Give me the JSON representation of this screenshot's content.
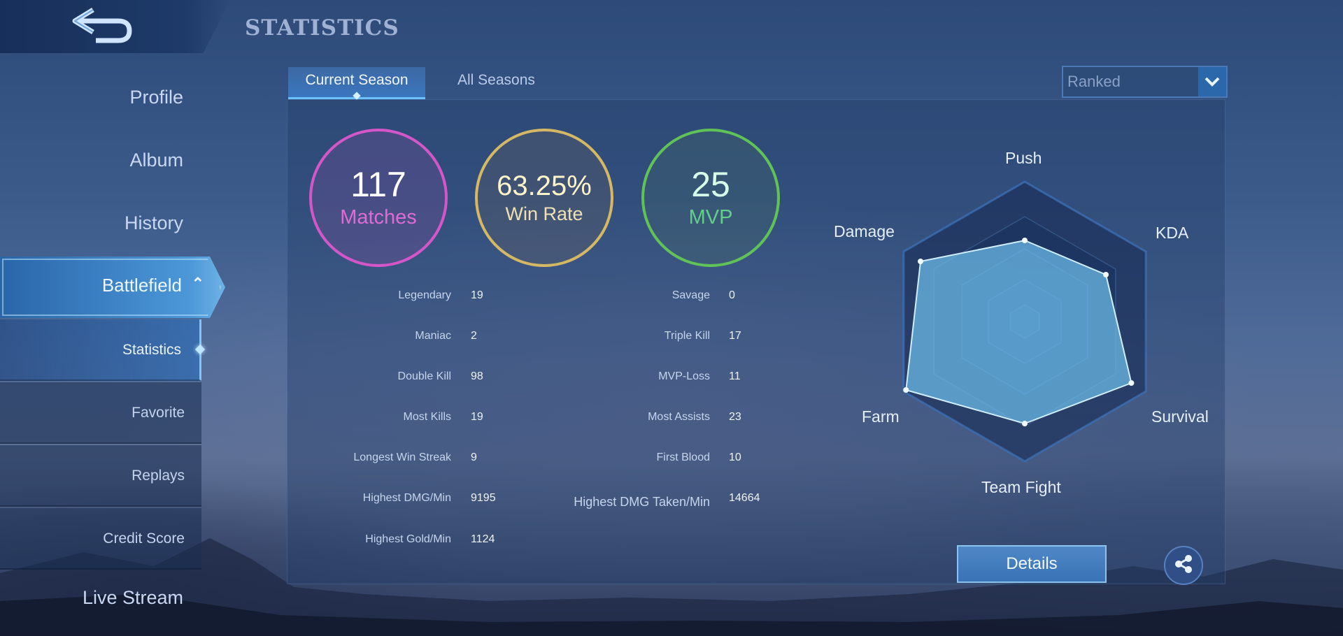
{
  "header": {
    "title": "STATISTICS",
    "back_icon": "back-arrow-icon"
  },
  "nav": {
    "profile": "Profile",
    "album": "Album",
    "history": "History",
    "battlefield": "Battlefield",
    "battlefield_chevron": "⌃",
    "sub_items": {
      "statistics": "Statistics",
      "favorite": "Favorite",
      "replays": "Replays",
      "credit_score": "Credit Score"
    },
    "live_stream": "Live Stream"
  },
  "tabs": {
    "current": "Current Season",
    "all": "All Seasons"
  },
  "mode_select": {
    "value": "Ranked"
  },
  "summary": {
    "matches": {
      "value": "117",
      "label": "Matches"
    },
    "win_rate": {
      "value": "63.25%",
      "label": "Win Rate"
    },
    "mvp": {
      "value": "25",
      "label": "MVP"
    }
  },
  "stats_left": [
    {
      "label": "Legendary",
      "value": "19"
    },
    {
      "label": "Maniac",
      "value": "2"
    },
    {
      "label": "Double Kill",
      "value": "98"
    },
    {
      "label": "Most Kills",
      "value": "19"
    },
    {
      "label": "Longest Win Streak",
      "value": "9"
    },
    {
      "label": "Highest DMG/Min",
      "value": "9195"
    },
    {
      "label": "Highest Gold/Min",
      "value": "1124"
    }
  ],
  "stats_right": [
    {
      "label": "Savage",
      "value": "0"
    },
    {
      "label": "Triple Kill",
      "value": "17"
    },
    {
      "label": "MVP-Loss",
      "value": "11"
    },
    {
      "label": "Most Assists",
      "value": "23"
    },
    {
      "label": "First Blood",
      "value": "10"
    },
    {
      "label": "Highest DMG Taken/Min",
      "value": "14664"
    }
  ],
  "radar": {
    "labels": {
      "push": "Push",
      "kda": "KDA",
      "survival": "Survival",
      "team_fight": "Team Fight",
      "farm": "Farm",
      "damage": "Damage"
    },
    "values": {
      "push": 0.58,
      "kda": 0.67,
      "survival": 0.88,
      "team_fight": 0.73,
      "farm": 0.98,
      "damage": 0.86
    }
  },
  "buttons": {
    "details": "Details",
    "share_icon": "share-icon"
  },
  "colors": {
    "matches": "#d456c8",
    "win_rate": "#d4b864",
    "mvp": "#5fc357",
    "accent": "#6dc2ff"
  }
}
